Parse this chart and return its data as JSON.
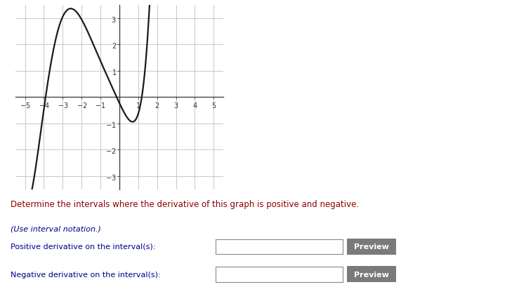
{
  "xlim": [
    -5.5,
    5.5
  ],
  "ylim": [
    -3.5,
    3.5
  ],
  "xticks": [
    -5,
    -4,
    -3,
    -2,
    -1,
    1,
    2,
    3,
    4,
    5
  ],
  "yticks": [
    -3,
    -2,
    -1,
    1,
    2,
    3
  ],
  "curve_color": "#1a1a1a",
  "grid_color": "#c8c8c8",
  "axis_color": "#444444",
  "bg_color": "#ffffff",
  "text_main": "Determine the intervals where the derivative of this graph is positive and negative.",
  "text_note": "(Use interval notation.)",
  "text_positive": "Positive derivative on the interval(s):",
  "text_negative": "Negative derivative on the interval(s):",
  "preview_btn_color": "#7a7a7a",
  "preview_text_color": "#ffffff",
  "main_text_color": "#8B0000",
  "blue_text_color": "#00008B",
  "x_ctrl": [
    -4.6,
    -4.2,
    -3.5,
    -2.8,
    -2.3,
    -1.5,
    -0.5,
    0.0,
    0.4,
    0.65,
    0.85,
    1.1,
    1.4,
    1.6
  ],
  "y_ctrl": [
    -3.4,
    -1.5,
    1.8,
    3.2,
    3.35,
    2.2,
    0.4,
    0.0,
    -0.7,
    -1.05,
    -1.0,
    -0.3,
    1.5,
    3.5
  ]
}
